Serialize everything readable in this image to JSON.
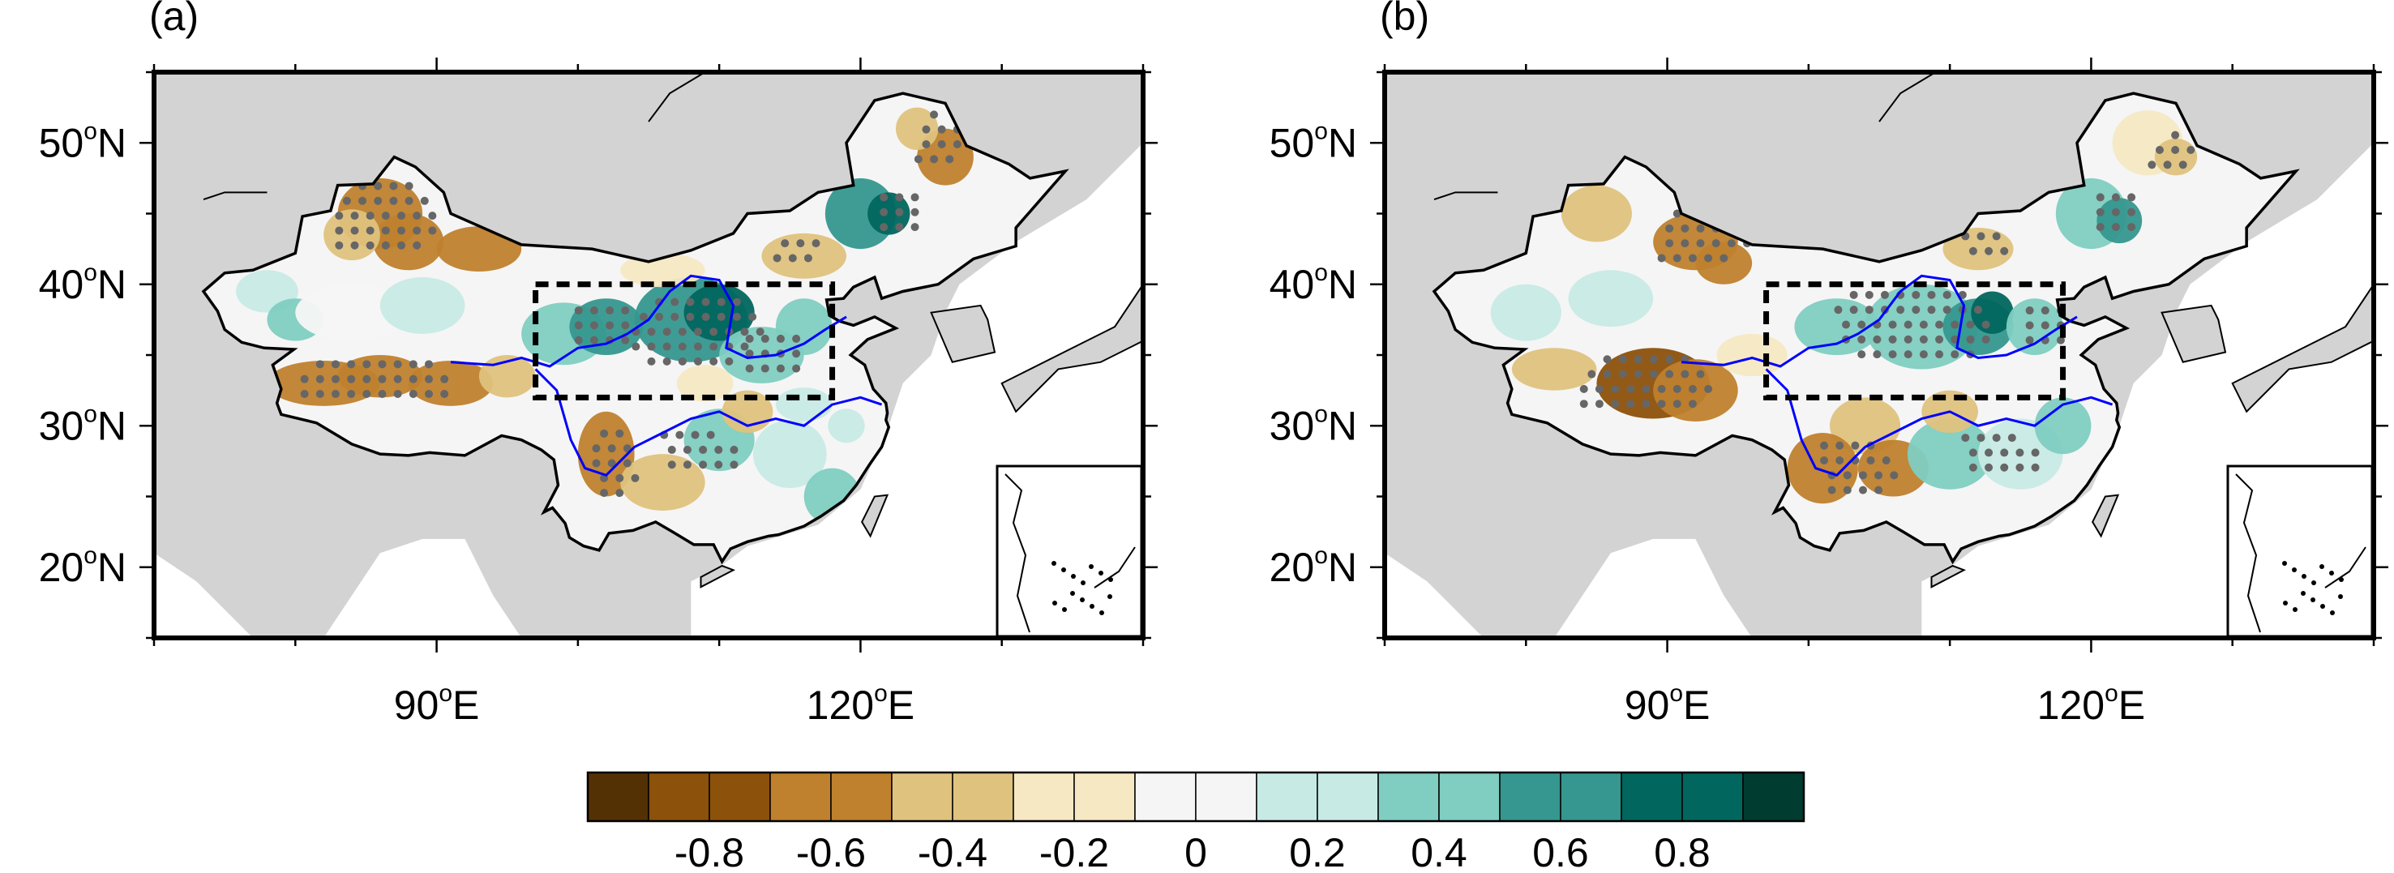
{
  "panels": [
    {
      "label": "(a)",
      "lat_ticks": [
        {
          "deg": "50",
          "sup": "o",
          "hem": "N"
        },
        {
          "deg": "40",
          "sup": "o",
          "hem": "N"
        },
        {
          "deg": "30",
          "sup": "o",
          "hem": "N"
        },
        {
          "deg": "20",
          "sup": "o",
          "hem": "N"
        }
      ],
      "lon_ticks": [
        {
          "deg": "90",
          "sup": "o",
          "hem": "E"
        },
        {
          "deg": "120",
          "sup": "o",
          "hem": "E"
        }
      ]
    },
    {
      "label": "(b)",
      "lat_ticks": [
        {
          "deg": "50",
          "sup": "o",
          "hem": "N"
        },
        {
          "deg": "40",
          "sup": "o",
          "hem": "N"
        },
        {
          "deg": "30",
          "sup": "o",
          "hem": "N"
        },
        {
          "deg": "20",
          "sup": "o",
          "hem": "N"
        }
      ],
      "lon_ticks": [
        {
          "deg": "90",
          "sup": "o",
          "hem": "E"
        },
        {
          "deg": "120",
          "sup": "o",
          "hem": "E"
        }
      ]
    }
  ],
  "colorbar": {
    "labels": [
      "-0.8",
      "-0.6",
      "-0.4",
      "-0.2",
      "0",
      "0.2",
      "0.4",
      "0.6",
      "0.8"
    ],
    "colors": [
      "#543005",
      "#8c510a",
      "#8c510a",
      "#bf812d",
      "#bf812d",
      "#dfc27d",
      "#dfc27d",
      "#f6e8c3",
      "#f6e8c3",
      "#f5f5f5",
      "#f5f5f5",
      "#c7eae5",
      "#c7eae5",
      "#80cdc1",
      "#80cdc1",
      "#35978f",
      "#35978f",
      "#01665e",
      "#01665e",
      "#003c30"
    ]
  },
  "colors": {
    "land_outside": "#d3d3d3",
    "ocean": "#ffffff",
    "river": "#0000ff",
    "box": "#000000",
    "dots": "#666666"
  }
}
